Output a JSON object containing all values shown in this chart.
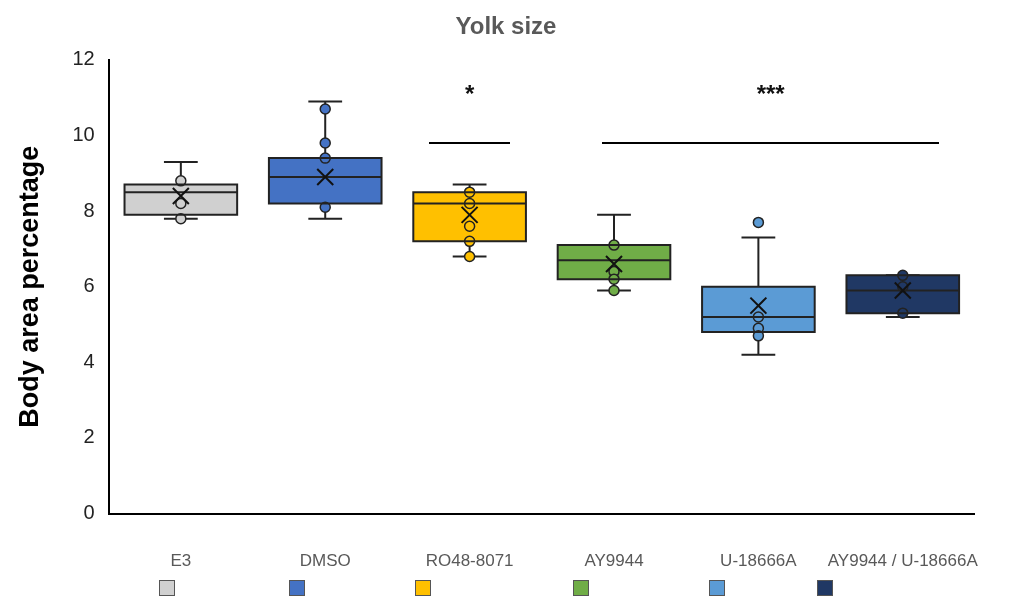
{
  "chart_data": {
    "type": "box",
    "title": "Yolk size",
    "ylabel": "Body area percentage",
    "categories": [
      "E3",
      "DMSO",
      "RO48-8071",
      "AY9944",
      "U-18666A",
      "AY9944 / U-18666A"
    ],
    "colors": [
      "#d0d0d0",
      "#4472c4",
      "#ffc000",
      "#70ad47",
      "#5b9bd5",
      "#203864"
    ],
    "boxes": [
      {
        "low": 7.8,
        "q1": 7.9,
        "median": 8.5,
        "q3": 8.7,
        "high": 9.3,
        "mean": 8.4
      },
      {
        "low": 7.8,
        "q1": 8.2,
        "median": 8.9,
        "q3": 9.4,
        "high": 10.9,
        "mean": 8.9
      },
      {
        "low": 6.8,
        "q1": 7.2,
        "median": 8.2,
        "q3": 8.5,
        "high": 8.7,
        "mean": 7.9
      },
      {
        "low": 5.9,
        "q1": 6.2,
        "median": 6.7,
        "q3": 7.1,
        "high": 7.9,
        "mean": 6.6
      },
      {
        "low": 4.2,
        "q1": 4.8,
        "median": 5.2,
        "q3": 6.0,
        "high": 7.3,
        "mean": 5.5,
        "outliers": [
          7.7
        ]
      },
      {
        "low": 5.2,
        "q1": 5.3,
        "median": 5.9,
        "q3": 6.3,
        "high": 6.3,
        "mean": 5.9
      }
    ],
    "series": [
      {
        "type": "scatter",
        "x": [
          "E3",
          "E3",
          "E3",
          "DMSO",
          "DMSO",
          "DMSO",
          "DMSO",
          "RO48-8071",
          "RO48-8071",
          "RO48-8071",
          "RO48-8071",
          "RO48-8071",
          "AY9944",
          "AY9944",
          "AY9944",
          "AY9944",
          "U-18666A",
          "U-18666A",
          "U-18666A",
          "AY9944 / U-18666A",
          "AY9944 / U-18666A",
          "AY9944 / U-18666A"
        ],
        "values": [
          8.8,
          8.2,
          7.8,
          10.7,
          9.8,
          9.4,
          8.1,
          8.5,
          8.2,
          7.6,
          7.2,
          6.8,
          7.1,
          6.4,
          6.2,
          5.9,
          5.2,
          4.9,
          4.7,
          6.3,
          6.0,
          5.3
        ],
        "colors": [
          "#d0d0d0",
          "#d0d0d0",
          "#d0d0d0",
          "#4472c4",
          "#4472c4",
          "#4472c4",
          "#4472c4",
          "#ffc000",
          "#ffc000",
          "#ffc000",
          "#ffc000",
          "#ffc000",
          "#70ad47",
          "#70ad47",
          "#70ad47",
          "#70ad47",
          "#5b9bd5",
          "#5b9bd5",
          "#5b9bd5",
          "#203864",
          "#203864",
          "#203864"
        ]
      }
    ],
    "annotations": [
      "*",
      "***"
    ],
    "ylim": [
      0,
      12
    ],
    "yticks": [
      0,
      2,
      4,
      6,
      8,
      10,
      12
    ],
    "grid": false,
    "marker": "circle"
  }
}
